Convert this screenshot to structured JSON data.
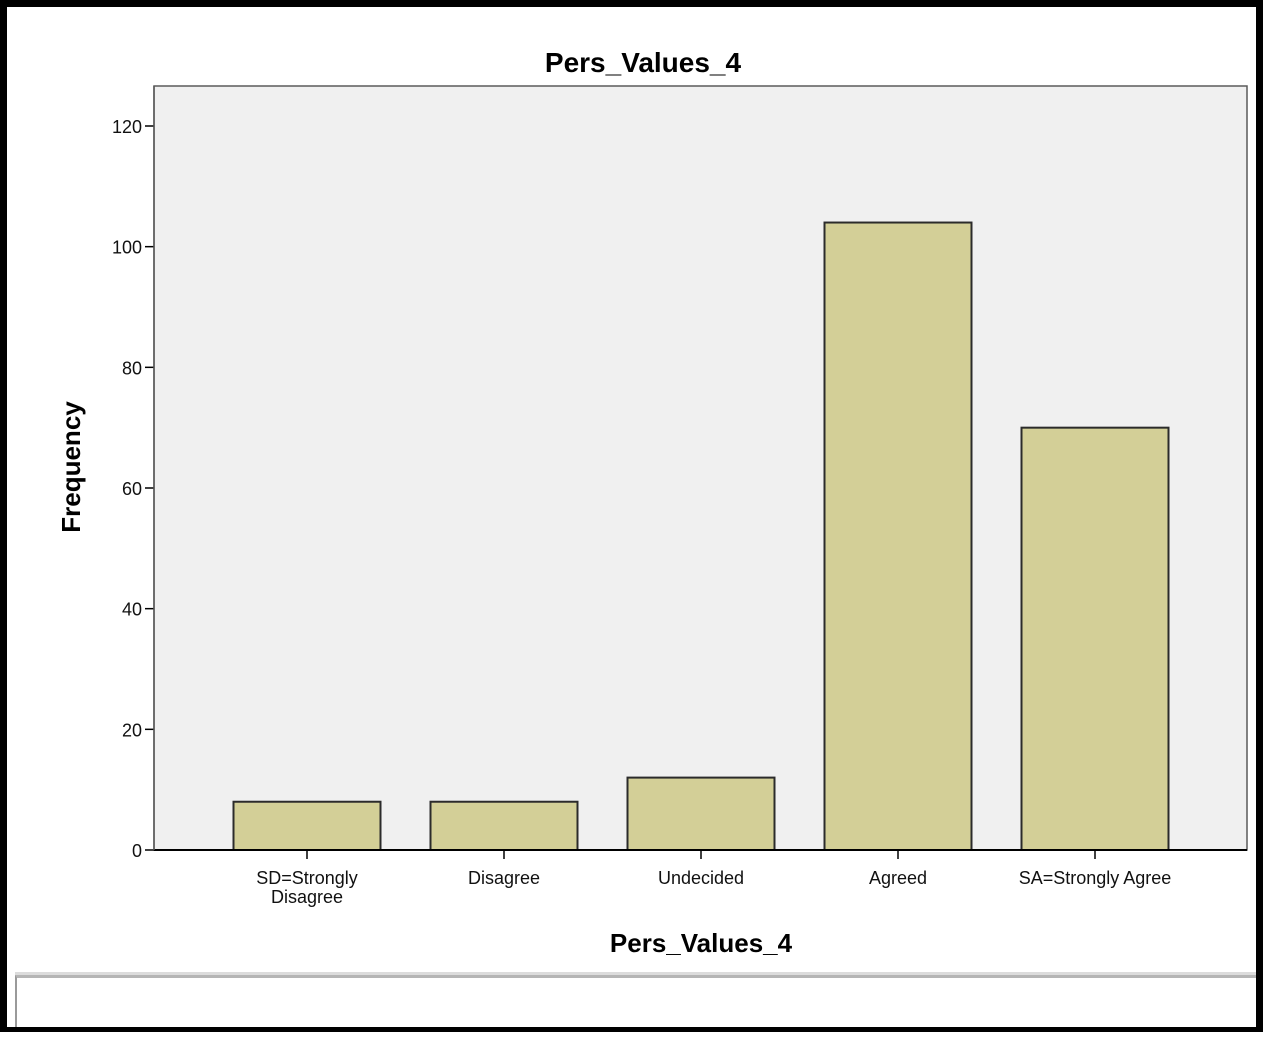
{
  "chart_data": {
    "type": "bar",
    "title": "Pers_Values_4",
    "xlabel": "Pers_Values_4",
    "ylabel": "Frequency",
    "categories": [
      [
        "SD=Strongly",
        "Disagree"
      ],
      [
        "Disagree"
      ],
      [
        "Undecided"
      ],
      [
        "Agreed"
      ],
      [
        "SA=Strongly Agree"
      ]
    ],
    "values": [
      8,
      8,
      12,
      104,
      70
    ],
    "ylim": [
      0,
      120
    ],
    "yticks": [
      0,
      20,
      40,
      60,
      80,
      100,
      120
    ],
    "grid": false,
    "legend": "none",
    "colors": {
      "bar_fill": "#d3cf97",
      "bar_stroke": "#2b2b2b",
      "plot_background": "#f0f0f0",
      "axis": "#000000"
    }
  }
}
